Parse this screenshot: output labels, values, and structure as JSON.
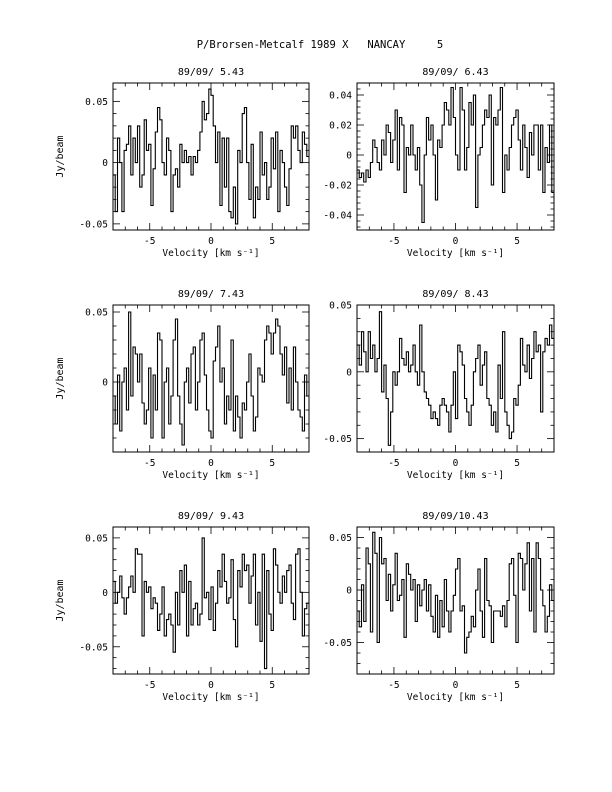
{
  "page_title": "P/Brorsen-Metcalf 1989 X   NANCAY     5",
  "chart_data": [
    {
      "type": "line",
      "step": true,
      "title": "89/09/ 5.43",
      "xlabel": "Velocity [km s⁻¹]",
      "ylabel": "Jy/beam",
      "xlim": [
        -8,
        8
      ],
      "ylim": [
        -0.055,
        0.065
      ],
      "xticks": [
        -5,
        0,
        5
      ],
      "xtick_labels": [
        "-5",
        "0",
        "5"
      ],
      "yticks": [
        -0.05,
        0,
        0.05
      ],
      "ytick_labels": [
        "-0.05",
        "0",
        "0.05"
      ],
      "series": [
        {
          "values": [
            -0.01,
            -0.04,
            0.02,
            0.0,
            -0.04,
            0.01,
            0.015,
            0.03,
            -0.01,
            0.02,
            0.0,
            0.03,
            -0.02,
            -0.01,
            0.035,
            0.01,
            0.015,
            -0.035,
            -0.005,
            0.025,
            0.045,
            0.035,
            0.0,
            -0.01,
            0.02,
            0.01,
            -0.04,
            -0.01,
            -0.005,
            -0.02,
            0.015,
            0.0,
            0.01,
            0.0,
            0.005,
            -0.01,
            0.005,
            0.0,
            0.01,
            0.025,
            0.05,
            0.035,
            0.04,
            0.06,
            0.055,
            0.03,
            0.0,
            0.025,
            -0.035,
            0.02,
            -0.02,
            0.02,
            -0.04,
            -0.045,
            -0.02,
            -0.05,
            0.01,
            0.0,
            0.04,
            0.045,
            0.0,
            -0.03,
            0.015,
            -0.045,
            -0.02,
            -0.03,
            0.025,
            -0.01,
            0.0,
            -0.03,
            -0.02,
            0.02,
            -0.005,
            0.025,
            -0.04,
            0.01,
            0.0,
            -0.02,
            -0.035,
            -0.005,
            0.03,
            0.02,
            0.03,
            0.01,
            0.0,
            0.025,
            0.015,
            0.005
          ]
        }
      ]
    },
    {
      "type": "line",
      "step": true,
      "title": "89/09/ 6.43",
      "xlabel": "Velocity [km s⁻¹]",
      "ylabel": "",
      "xlim": [
        -8,
        8
      ],
      "ylim": [
        -0.05,
        0.048
      ],
      "xticks": [
        -5,
        0,
        5
      ],
      "xtick_labels": [
        "-5",
        "0",
        "5"
      ],
      "yticks": [
        -0.04,
        -0.02,
        0,
        0.02,
        0.04
      ],
      "ytick_labels": [
        "-0.04",
        "-0.02",
        "0",
        "0.02",
        "0.04"
      ],
      "series": [
        {
          "values": [
            -0.01,
            -0.015,
            -0.012,
            -0.018,
            -0.01,
            -0.015,
            -0.005,
            0.01,
            0.005,
            -0.005,
            -0.01,
            0.01,
            0.0,
            0.02,
            0.015,
            -0.005,
            0.01,
            0.03,
            -0.01,
            0.025,
            0.02,
            -0.025,
            0.005,
            0.0,
            0.02,
            0.0,
            -0.01,
            0.005,
            -0.02,
            -0.045,
            0.0,
            0.025,
            0.01,
            0.02,
            0.0,
            -0.03,
            0.01,
            0.005,
            0.02,
            0.035,
            0.03,
            0.02,
            0.045,
            0.025,
            0.0,
            -0.01,
            0.045,
            0.03,
            -0.01,
            0.005,
            0.035,
            0.02,
            0.04,
            -0.035,
            0.0,
            0.005,
            0.02,
            0.03,
            0.025,
            0.04,
            -0.02,
            0.025,
            0.02,
            0.03,
            0.045,
            -0.025,
            0.0,
            -0.01,
            0.005,
            0.02,
            0.025,
            0.03,
            0.01,
            -0.01,
            0.02,
            0.005,
            -0.015,
            0.015,
            0.0,
            0.02,
            0.02,
            -0.01,
            0.02,
            -0.025,
            0.005,
            -0.005,
            0.02,
            -0.025
          ]
        }
      ]
    },
    {
      "type": "line",
      "step": true,
      "title": "89/09/ 7.43",
      "xlabel": "Velocity [km s⁻¹]",
      "ylabel": "Jy/beam",
      "xlim": [
        -8,
        8
      ],
      "ylim": [
        -0.05,
        0.055
      ],
      "xticks": [
        -5,
        0,
        5
      ],
      "xtick_labels": [
        "-5",
        "0",
        "5"
      ],
      "yticks": [
        0,
        0.05
      ],
      "ytick_labels": [
        "0",
        "0.05"
      ],
      "series": [
        {
          "values": [
            -0.01,
            -0.03,
            0.005,
            -0.035,
            0.0,
            0.01,
            -0.02,
            0.05,
            -0.01,
            0.025,
            0.02,
            0.0,
            0.02,
            -0.015,
            -0.03,
            -0.02,
            0.01,
            -0.04,
            0.005,
            -0.02,
            0.035,
            0.03,
            -0.04,
            0.0,
            0.01,
            -0.03,
            -0.01,
            0.03,
            0.045,
            -0.01,
            -0.03,
            -0.045,
            0.0,
            0.01,
            -0.015,
            0.02,
            0.025,
            -0.02,
            0.0,
            0.03,
            0.035,
            0.005,
            -0.02,
            -0.035,
            -0.04,
            0.015,
            0.025,
            0.04,
            0.0,
            0.01,
            -0.03,
            -0.01,
            -0.02,
            0.03,
            -0.035,
            -0.01,
            -0.025,
            -0.04,
            -0.015,
            -0.02,
            0.0,
            0.02,
            -0.01,
            -0.035,
            -0.025,
            0.01,
            0.005,
            0.0,
            0.03,
            0.04,
            0.035,
            0.02,
            0.035,
            0.045,
            0.04,
            0.02,
            0.005,
            0.025,
            -0.015,
            0.01,
            -0.02,
            0.025,
            0.0,
            -0.02,
            -0.025,
            -0.035,
            0.005,
            -0.01
          ]
        }
      ]
    },
    {
      "type": "line",
      "step": true,
      "title": "89/09/ 8.43",
      "xlabel": "Velocity [km s⁻¹]",
      "ylabel": "",
      "xlim": [
        -8,
        8
      ],
      "ylim": [
        -0.06,
        0.05
      ],
      "xticks": [
        -5,
        0,
        5
      ],
      "xtick_labels": [
        "-5",
        "0",
        "5"
      ],
      "yticks": [
        -0.05,
        0,
        0.05
      ],
      "ytick_labels": [
        "-0.05",
        "0",
        "0.05"
      ],
      "series": [
        {
          "values": [
            0.02,
            0.005,
            0.03,
            0.015,
            0.0,
            0.03,
            0.01,
            0.02,
            0.0,
            0.01,
            0.045,
            -0.015,
            0.005,
            -0.02,
            -0.055,
            -0.03,
            0.0,
            -0.01,
            0.0,
            0.025,
            0.01,
            0.005,
            0.015,
            0.0,
            0.005,
            0.02,
            0.0,
            -0.01,
            0.035,
            0.0,
            -0.015,
            -0.02,
            -0.025,
            -0.035,
            -0.03,
            -0.035,
            -0.04,
            -0.025,
            -0.02,
            -0.025,
            -0.03,
            -0.045,
            -0.025,
            0.0,
            -0.035,
            0.02,
            0.015,
            0.005,
            -0.02,
            -0.03,
            -0.04,
            -0.025,
            0.0,
            0.01,
            0.02,
            -0.01,
            0.005,
            0.015,
            -0.02,
            -0.025,
            -0.04,
            -0.03,
            -0.045,
            0.005,
            -0.02,
            0.03,
            -0.03,
            -0.04,
            -0.05,
            -0.045,
            -0.02,
            -0.025,
            -0.01,
            0.025,
            0.005,
            0.0,
            0.02,
            -0.005,
            0.01,
            0.03,
            0.015,
            0.02,
            -0.03,
            0.015,
            0.025,
            0.02,
            0.035,
            0.025
          ]
        }
      ]
    },
    {
      "type": "line",
      "step": true,
      "title": "89/09/ 9.43",
      "xlabel": "Velocity [km s⁻¹]",
      "ylabel": "Jy/beam",
      "xlim": [
        -8,
        8
      ],
      "ylim": [
        -0.075,
        0.06
      ],
      "xticks": [
        -5,
        0,
        5
      ],
      "xtick_labels": [
        "-5",
        "0",
        "5"
      ],
      "yticks": [
        -0.05,
        0,
        0.05
      ],
      "ytick_labels": [
        "-0.05",
        "0",
        "0.05"
      ],
      "series": [
        {
          "values": [
            0.01,
            -0.01,
            0.0,
            0.015,
            -0.005,
            -0.02,
            -0.005,
            0.005,
            0.015,
            0.0,
            0.04,
            0.035,
            0.035,
            -0.04,
            0.01,
            0.0,
            0.005,
            -0.015,
            -0.005,
            -0.01,
            -0.035,
            -0.02,
            0.005,
            -0.04,
            -0.025,
            -0.02,
            -0.03,
            -0.055,
            0.0,
            -0.03,
            0.02,
            0.0,
            0.025,
            -0.04,
            0.01,
            -0.03,
            -0.015,
            -0.01,
            -0.03,
            -0.02,
            0.05,
            -0.005,
            0.0,
            -0.025,
            0.005,
            -0.035,
            -0.01,
            0.02,
            0.005,
            0.035,
            0.01,
            -0.01,
            -0.005,
            0.03,
            -0.025,
            -0.05,
            0.02,
            0.005,
            0.035,
            0.02,
            0.025,
            -0.01,
            0.015,
            0.035,
            -0.03,
            0.0,
            -0.045,
            0.035,
            -0.07,
            0.02,
            -0.02,
            -0.035,
            0.04,
            0.025,
            0.0,
            -0.01,
            0.015,
            0.0,
            0.02,
            0.025,
            -0.01,
            -0.025,
            0.035,
            0.04,
            0.0,
            -0.04,
            -0.015,
            -0.01
          ]
        }
      ]
    },
    {
      "type": "line",
      "step": true,
      "title": "89/09/10.43",
      "xlabel": "Velocity [km s⁻¹]",
      "ylabel": "",
      "xlim": [
        -8,
        8
      ],
      "ylim": [
        -0.08,
        0.06
      ],
      "xticks": [
        -5,
        0,
        5
      ],
      "xtick_labels": [
        "-5",
        "0",
        "5"
      ],
      "yticks": [
        -0.05,
        0,
        0.05
      ],
      "ytick_labels": [
        "-0.05",
        "0",
        "0.05"
      ],
      "series": [
        {
          "values": [
            -0.02,
            -0.035,
            0.005,
            -0.03,
            0.04,
            0.025,
            -0.04,
            0.055,
            0.035,
            -0.05,
            0.05,
            0.025,
            0.03,
            -0.01,
            0.015,
            -0.02,
            0.005,
            0.035,
            -0.01,
            -0.005,
            0.01,
            -0.045,
            0.025,
            0.015,
            0.0,
            0.01,
            -0.03,
            0.005,
            -0.015,
            0.0,
            0.01,
            -0.02,
            0.005,
            -0.025,
            -0.04,
            -0.005,
            -0.045,
            -0.01,
            -0.035,
            0.01,
            -0.02,
            -0.04,
            -0.02,
            -0.005,
            0.02,
            0.03,
            -0.02,
            -0.015,
            -0.06,
            -0.045,
            -0.04,
            -0.025,
            -0.035,
            0.0,
            0.02,
            -0.02,
            -0.045,
            0.03,
            -0.01,
            -0.015,
            -0.05,
            -0.02,
            -0.02,
            -0.02,
            -0.025,
            -0.015,
            -0.035,
            -0.01,
            0.025,
            0.03,
            -0.005,
            -0.05,
            0.035,
            0.03,
            0.0,
            0.025,
            0.045,
            -0.02,
            0.03,
            -0.04,
            0.045,
            0.03,
            0.0,
            -0.015,
            -0.04,
            -0.025,
            0.005,
            -0.01
          ]
        }
      ]
    }
  ]
}
